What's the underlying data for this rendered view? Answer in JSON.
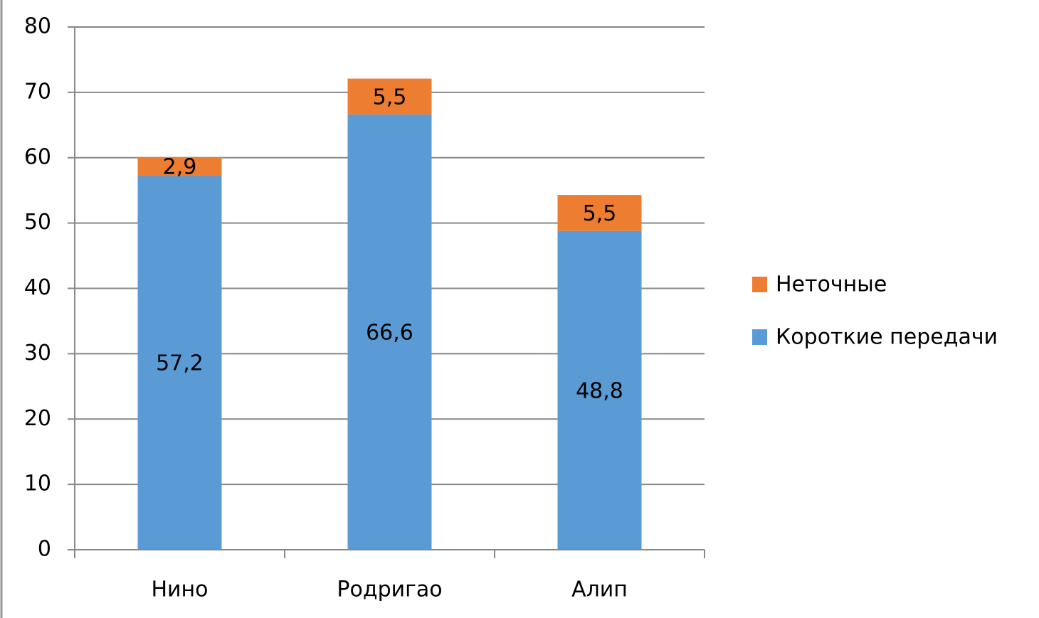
{
  "chart_data": {
    "type": "stacked_bar",
    "categories": [
      "Нино",
      "Родригао",
      "Алип"
    ],
    "series": [
      {
        "name": "Короткие передачи",
        "color": "#5b9bd5",
        "values": [
          57.2,
          66.6,
          48.8
        ],
        "value_labels": [
          "57,2",
          "66,6",
          "48,8"
        ]
      },
      {
        "name": "Неточные",
        "color": "#ed7d31",
        "values": [
          2.9,
          5.5,
          5.5
        ],
        "value_labels": [
          "2,9",
          "5,5",
          "5,5"
        ]
      }
    ],
    "ylim": [
      0,
      80
    ],
    "yticks": [
      0,
      10,
      20,
      30,
      40,
      50,
      60,
      70,
      80
    ],
    "grid": true,
    "legend": "right"
  }
}
